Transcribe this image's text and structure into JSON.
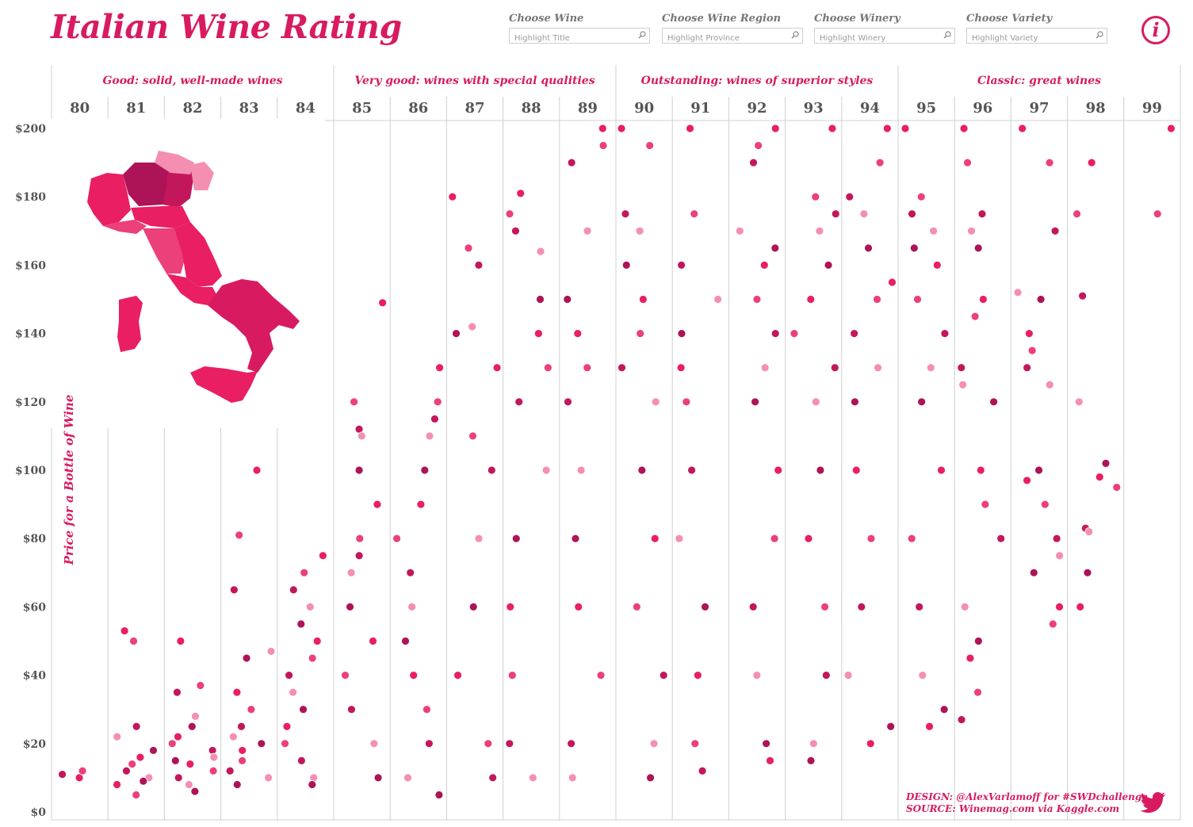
{
  "title": "Italian Wine Rating",
  "filters": [
    {
      "label": "Choose Wine",
      "placeholder": "Highlight Title"
    },
    {
      "label": "Choose Wine Region",
      "placeholder": "Highlight Province"
    },
    {
      "label": "Choose Winery",
      "placeholder": "Highlight Winery"
    },
    {
      "label": "Choose Variety",
      "placeholder": "Highlight Variety"
    }
  ],
  "info_button": "i",
  "credits": {
    "design": "DESIGN: @AlexVarlamoff for #SWDchallenge",
    "source": "SOURCE: Winemag.com via Kaggle.com"
  },
  "icons": [
    "search-icon",
    "info-icon",
    "twitter-icon",
    "italy-map"
  ],
  "colors": {
    "accent": "#d81b60",
    "point_palette": [
      "#e91e63",
      "#ec407a",
      "#c2185b",
      "#f48fb1",
      "#ad1457"
    ],
    "grid": "#d0d0d0"
  },
  "chart_data": {
    "type": "scatter",
    "xlabel": "",
    "ylabel": "Price for a Bottle of Wine",
    "ylim": [
      0,
      200
    ],
    "y_ticks": [
      "$0",
      "$20",
      "$40",
      "$60",
      "$80",
      "$100",
      "$120",
      "$140",
      "$160",
      "$180",
      "$200"
    ],
    "categories": [
      "80",
      "81",
      "82",
      "83",
      "84",
      "85",
      "86",
      "87",
      "88",
      "89",
      "90",
      "91",
      "92",
      "93",
      "94",
      "95",
      "96",
      "97",
      "98",
      "99"
    ],
    "groups": [
      {
        "label": "Good: solid, well-made wines",
        "points": [
          "80",
          "81",
          "82",
          "83",
          "84"
        ]
      },
      {
        "label": "Very good: wines with special qualities",
        "points": [
          "85",
          "86",
          "87",
          "88",
          "89"
        ]
      },
      {
        "label": "Outstanding: wines of superior styles",
        "points": [
          "90",
          "91",
          "92",
          "93",
          "94"
        ]
      },
      {
        "label": "Classic: great wines",
        "points": [
          "95",
          "96",
          "97",
          "98",
          "99"
        ]
      }
    ],
    "grid": true,
    "series": [
      {
        "points": "80",
        "prices": [
          10,
          12,
          11
        ]
      },
      {
        "points": "81",
        "prices": [
          53,
          50,
          25,
          22,
          18,
          16,
          14,
          12,
          10,
          9,
          8,
          5
        ]
      },
      {
        "points": "82",
        "prices": [
          50,
          37,
          35,
          28,
          25,
          22,
          20,
          18,
          16,
          15,
          14,
          12,
          10,
          8,
          6
        ]
      },
      {
        "points": "83",
        "prices": [
          100,
          81,
          65,
          47,
          45,
          35,
          30,
          25,
          22,
          20,
          18,
          15,
          12,
          10,
          8
        ]
      },
      {
        "points": "84",
        "prices": [
          75,
          70,
          65,
          60,
          55,
          50,
          45,
          40,
          35,
          30,
          25,
          20,
          15,
          10,
          8
        ]
      },
      {
        "points": "85",
        "prices": [
          149,
          120,
          112,
          110,
          100,
          90,
          80,
          75,
          70,
          60,
          50,
          40,
          30,
          20,
          10
        ]
      },
      {
        "points": "86",
        "prices": [
          130,
          120,
          115,
          110,
          100,
          90,
          80,
          70,
          60,
          50,
          40,
          30,
          20,
          10,
          5
        ]
      },
      {
        "points": "87",
        "prices": [
          180,
          165,
          160,
          142,
          140,
          130,
          110,
          100,
          80,
          60,
          40,
          20,
          10
        ]
      },
      {
        "points": "88",
        "prices": [
          181,
          175,
          170,
          164,
          150,
          140,
          130,
          120,
          100,
          80,
          60,
          40,
          20,
          10
        ]
      },
      {
        "points": "89",
        "prices": [
          200,
          195,
          190,
          170,
          150,
          140,
          130,
          120,
          100,
          80,
          60,
          40,
          20,
          10
        ]
      },
      {
        "points": "90",
        "prices": [
          200,
          195,
          175,
          170,
          160,
          150,
          140,
          130,
          120,
          100,
          80,
          60,
          40,
          20,
          10
        ]
      },
      {
        "points": "91",
        "prices": [
          200,
          175,
          160,
          150,
          140,
          130,
          120,
          100,
          80,
          60,
          40,
          20,
          12
        ]
      },
      {
        "points": "92",
        "prices": [
          200,
          195,
          190,
          170,
          165,
          160,
          150,
          140,
          130,
          120,
          100,
          80,
          60,
          40,
          20,
          15
        ]
      },
      {
        "points": "93",
        "prices": [
          200,
          180,
          175,
          170,
          160,
          150,
          140,
          130,
          120,
          100,
          80,
          60,
          40,
          20,
          15
        ]
      },
      {
        "points": "94",
        "prices": [
          200,
          190,
          180,
          175,
          165,
          155,
          150,
          140,
          130,
          120,
          100,
          80,
          60,
          40,
          25,
          20
        ]
      },
      {
        "points": "95",
        "prices": [
          200,
          180,
          175,
          170,
          165,
          160,
          150,
          140,
          130,
          120,
          100,
          80,
          60,
          40,
          30,
          25
        ]
      },
      {
        "points": "96",
        "prices": [
          200,
          190,
          175,
          170,
          165,
          150,
          145,
          130,
          125,
          120,
          100,
          90,
          80,
          60,
          50,
          45,
          35,
          27
        ]
      },
      {
        "points": "97",
        "prices": [
          200,
          190,
          170,
          152,
          150,
          140,
          135,
          130,
          125,
          100,
          97,
          90,
          80,
          75,
          70,
          60,
          55
        ]
      },
      {
        "points": "98",
        "prices": [
          190,
          175,
          151,
          120,
          102,
          98,
          95,
          83,
          82,
          70,
          60
        ]
      },
      {
        "points": "99",
        "prices": [
          200,
          175
        ]
      }
    ]
  }
}
